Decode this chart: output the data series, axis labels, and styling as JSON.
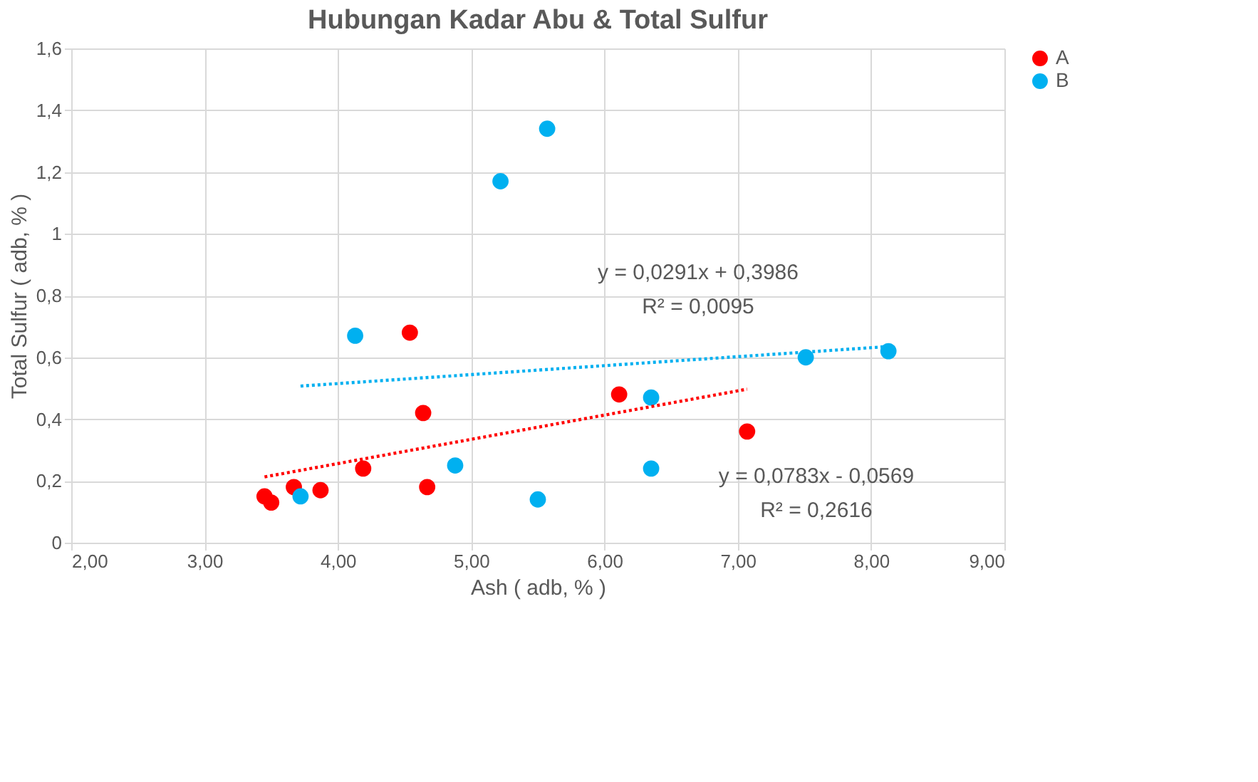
{
  "chart_data": {
    "type": "scatter",
    "title": "Hubungan Kadar Abu & Total Sulfur",
    "xlabel": "Ash ( adb, % )",
    "ylabel": "Total Sulfur ( adb, % )",
    "xlim": [
      2,
      9
    ],
    "xticks": [
      {
        "value": 2,
        "label": "2,00"
      },
      {
        "value": 3,
        "label": "3,00"
      },
      {
        "value": 4,
        "label": "4,00"
      },
      {
        "value": 5,
        "label": "5,00"
      },
      {
        "value": 6,
        "label": "6,00"
      },
      {
        "value": 7,
        "label": "7,00"
      },
      {
        "value": 8,
        "label": "8,00"
      },
      {
        "value": 9,
        "label": "9,00"
      }
    ],
    "ylim": [
      0,
      1.6
    ],
    "yticks": [
      0,
      {
        "value": 0.2,
        "label": "0,2"
      },
      {
        "value": 0.4,
        "label": "0,4"
      },
      {
        "value": 0.6,
        "label": "0,6"
      },
      {
        "value": 0.8,
        "label": "0,8"
      },
      1,
      {
        "value": 1.2,
        "label": "1,2"
      },
      {
        "value": 1.4,
        "label": "1,4"
      },
      {
        "value": 1.6,
        "label": "1,6"
      }
    ],
    "grid": true,
    "legend": "right",
    "marker": "circle",
    "series": [
      {
        "name": "A",
        "color": "#ff0000",
        "x": [
          3.45,
          3.5,
          3.67,
          3.87,
          4.19,
          4.54,
          4.64,
          4.67,
          6.11,
          7.07
        ],
        "values": [
          0.15,
          0.13,
          0.18,
          0.17,
          0.24,
          0.68,
          0.42,
          0.18,
          0.48,
          0.36
        ]
      },
      {
        "name": "B",
        "color": "#00b0f0",
        "x": [
          3.72,
          4.13,
          4.88,
          5.22,
          5.57,
          5.5,
          6.35,
          6.35,
          7.51,
          8.13
        ],
        "values": [
          0.15,
          0.67,
          0.25,
          1.17,
          1.34,
          0.14,
          0.47,
          0.24,
          0.6,
          0.62
        ]
      },
      {
        "type": "line",
        "line_style": "dotted",
        "marker": "none",
        "color": "#ff0000",
        "x": [
          3.45,
          7.07
        ],
        "values": [
          0.213,
          0.497
        ]
      },
      {
        "type": "line",
        "line_style": "dotted",
        "marker": "none",
        "color": "#00b0f0",
        "x": [
          3.72,
          8.13
        ],
        "values": [
          0.507,
          0.635
        ]
      }
    ],
    "annotations": [
      "y = 0,0291x + 0,3986",
      "R² = 0,0095",
      "y = 0,0783x - 0,0569",
      "R² = 0,2616"
    ]
  }
}
